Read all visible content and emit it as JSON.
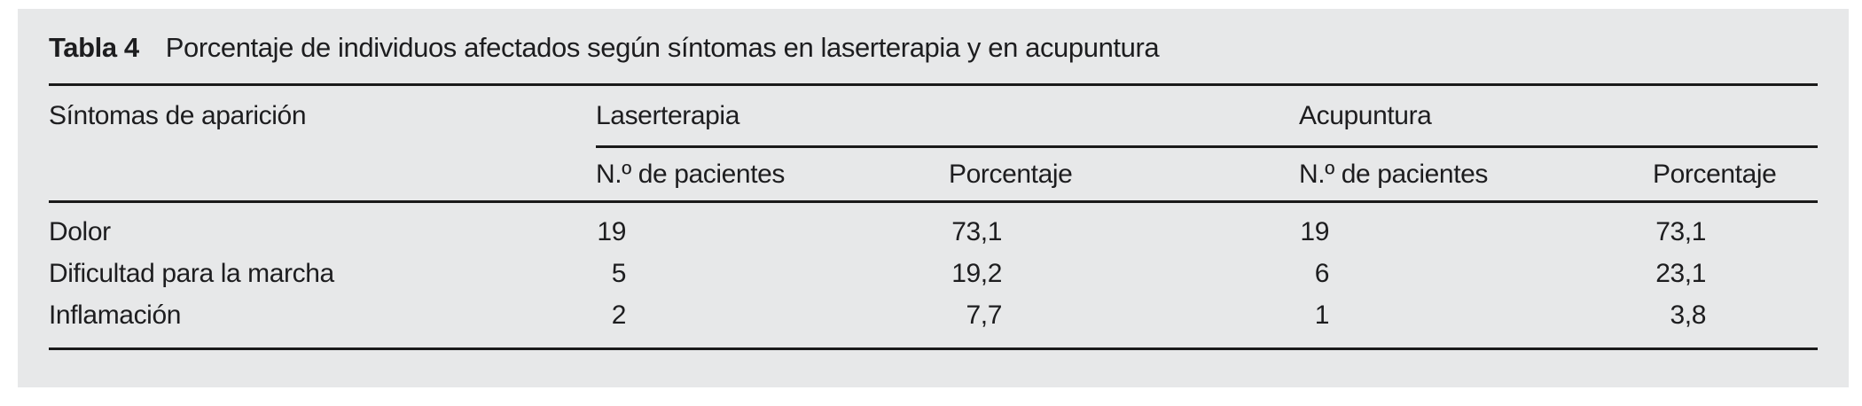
{
  "colors": {
    "page_bg": "#ffffff",
    "panel_bg": "#e7e8e9",
    "text": "#1d1d1f",
    "rule": "#1a1a1a"
  },
  "table": {
    "label": "Tabla 4",
    "caption": "Porcentaje de individuos afectados según síntomas en laserterapia y en acupuntura",
    "stub_header": "Síntomas de aparición",
    "groups": [
      {
        "label": "Laserterapia"
      },
      {
        "label": "Acupuntura"
      }
    ],
    "subheaders": {
      "laser_n": "N.º de pacientes",
      "laser_pct": "Porcentaje",
      "acu_n": "N.º de pacientes",
      "acu_pct": "Porcentaje"
    },
    "rows": [
      {
        "symptom": "Dolor",
        "laser_n": "19",
        "laser_pct": "73,1",
        "acu_n": "19",
        "acu_pct": "73,1"
      },
      {
        "symptom": "Dificultad para la marcha",
        "laser_n": "5",
        "laser_pct": "19,2",
        "acu_n": "6",
        "acu_pct": "23,1"
      },
      {
        "symptom": "Inflamación",
        "laser_n": "2",
        "laser_pct": "7,7",
        "acu_n": "1",
        "acu_pct": "3,8"
      }
    ]
  },
  "chart_data": {
    "type": "table",
    "title": "Tabla 4 — Porcentaje de individuos afectados según síntomas en laserterapia y en acupuntura",
    "columns": [
      "Síntomas de aparición",
      "Laserterapia — N.º de pacientes",
      "Laserterapia — Porcentaje",
      "Acupuntura — N.º de pacientes",
      "Acupuntura — Porcentaje"
    ],
    "rows": [
      [
        "Dolor",
        19,
        73.1,
        19,
        73.1
      ],
      [
        "Dificultad para la marcha",
        5,
        19.2,
        6,
        23.1
      ],
      [
        "Inflamación",
        2,
        7.7,
        1,
        3.8
      ]
    ]
  }
}
